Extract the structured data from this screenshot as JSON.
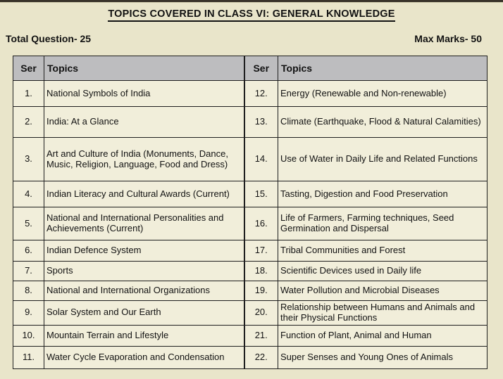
{
  "page": {
    "title": "TOPICS COVERED IN CLASS VI: GENERAL KNOWLEDGE",
    "total_questions": "Total Question- 25",
    "max_marks": "Max Marks- 50"
  },
  "colors": {
    "page_background": "#e9e5ca",
    "cell_background": "#f1eeda",
    "header_background": "#bdbdbf",
    "border": "#1f1f1f",
    "text": "#121212",
    "top_bar": "#39332a"
  },
  "table": {
    "headers": [
      "Ser",
      "Topics",
      "Ser",
      "Topics"
    ],
    "rows": [
      [
        "1.",
        "National Symbols of India",
        "12.",
        "Energy (Renewable and Non-renewable)"
      ],
      [
        "2.",
        "India: At a Glance",
        "13.",
        "Climate (Earthquake, Flood & Natural Calamities)"
      ],
      [
        "3.",
        "Art and Culture of India (Monuments, Dance, Music, Religion, Language, Food and Dress)",
        "14.",
        "Use of Water in Daily Life and Related Functions"
      ],
      [
        "4.",
        "Indian Literacy and Cultural Awards (Current)",
        "15.",
        "Tasting, Digestion and Food Preservation"
      ],
      [
        "5.",
        "National and International Personalities and Achievements (Current)",
        "16.",
        "Life of Farmers, Farming techniques, Seed Germination and Dispersal"
      ],
      [
        "6.",
        "Indian Defence System",
        "17.",
        "Tribal Communities and Forest"
      ],
      [
        "7.",
        "Sports",
        "18.",
        "Scientific Devices used in Daily life"
      ],
      [
        "8.",
        "National and International Organizations",
        "19.",
        "Water Pollution and Microbial Diseases"
      ],
      [
        "9.",
        "Solar System and Our Earth",
        "20.",
        "Relationship between Humans and Animals and their Physical Functions"
      ],
      [
        "10.",
        "Mountain Terrain and Lifestyle",
        "21.",
        "Function of Plant, Animal and Human"
      ],
      [
        "11.",
        "Water Cycle Evaporation and Condensation",
        "22.",
        "Super Senses and Young Ones of Animals"
      ]
    ]
  }
}
